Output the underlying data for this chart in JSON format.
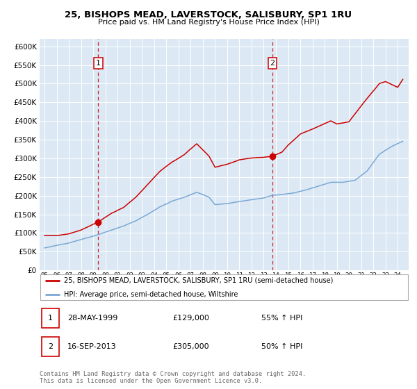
{
  "title1": "25, BISHOPS MEAD, LAVERSTOCK, SALISBURY, SP1 1RU",
  "title2": "Price paid vs. HM Land Registry's House Price Index (HPI)",
  "bg_color": "#dce9f5",
  "red_line_color": "#cc0000",
  "blue_line_color": "#7aa8d4",
  "vline_color": "#cc0000",
  "marker1_date_x": 1999.41,
  "marker1_y": 129000,
  "marker2_date_x": 2013.71,
  "marker2_y": 305000,
  "legend_line1": "25, BISHOPS MEAD, LAVERSTOCK, SALISBURY, SP1 1RU (semi-detached house)",
  "legend_line2": "HPI: Average price, semi-detached house, Wiltshire",
  "table_row1": [
    "1",
    "28-MAY-1999",
    "£129,000",
    "55% ↑ HPI"
  ],
  "table_row2": [
    "2",
    "16-SEP-2013",
    "£305,000",
    "50% ↑ HPI"
  ],
  "footer": "Contains HM Land Registry data © Crown copyright and database right 2024.\nThis data is licensed under the Open Government Licence v3.0.",
  "ylim": [
    0,
    620000
  ],
  "yticks": [
    0,
    50000,
    100000,
    150000,
    200000,
    250000,
    300000,
    350000,
    400000,
    450000,
    500000,
    550000,
    600000
  ],
  "xlim_start": 1994.6,
  "xlim_end": 2024.9
}
